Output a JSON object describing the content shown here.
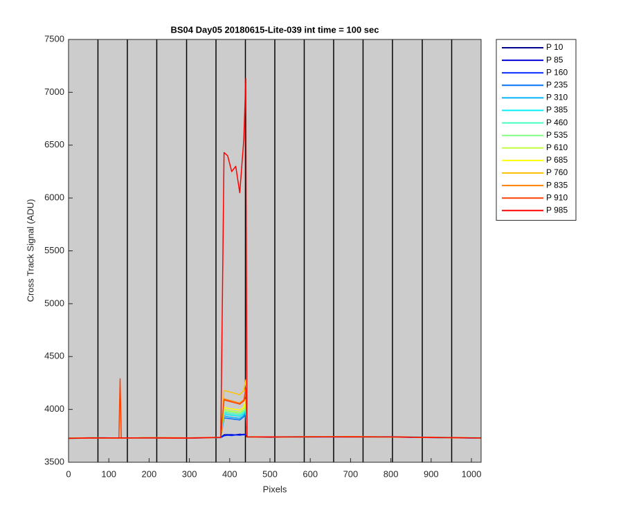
{
  "chart_data": {
    "type": "line",
    "title": "BS04 Day05 20180615-Lite-039 int time = 100 sec",
    "x_label": "Pixels",
    "y_label": "Cross Track Signal (ADU)",
    "xlim": [
      0,
      1024
    ],
    "ylim": [
      3500,
      7500
    ],
    "xticks": [
      0,
      100,
      200,
      300,
      400,
      500,
      600,
      700,
      800,
      900,
      1000
    ],
    "yticks": [
      3500,
      4000,
      4500,
      5000,
      5500,
      6000,
      6500,
      7000,
      7500
    ],
    "vlines": [
      73,
      146,
      219,
      293,
      366,
      439,
      512,
      585,
      658,
      731,
      804,
      878,
      951
    ],
    "background": "#cccccc",
    "legend": "outside-right",
    "x": [
      0,
      60,
      125,
      128,
      131,
      200,
      300,
      378,
      386,
      395,
      405,
      415,
      425,
      435,
      440,
      443,
      500,
      600,
      700,
      800,
      900,
      1024
    ],
    "series": [
      {
        "name": "P 10",
        "color": "#000090",
        "values": [
          3725,
          3730,
          3728,
          3730,
          3728,
          3732,
          3729,
          3735,
          3760,
          3762,
          3758,
          3760,
          3765,
          3762,
          3760,
          3740,
          3738,
          3740,
          3742,
          3740,
          3735,
          3730
        ]
      },
      {
        "name": "P 85",
        "color": "#0000dc",
        "values": [
          3728,
          3732,
          3730,
          3731,
          3729,
          3730,
          3731,
          3734,
          3755,
          3760,
          3762,
          3758,
          3760,
          3765,
          3760,
          3738,
          3736,
          3741,
          3740,
          3738,
          3733,
          3728
        ]
      },
      {
        "name": "P 160",
        "color": "#0028ff",
        "values": [
          3726,
          3731,
          3729,
          3730,
          3730,
          3731,
          3728,
          3733,
          3750,
          3755,
          3752,
          3758,
          3755,
          3760,
          3758,
          3739,
          3737,
          3739,
          3741,
          3739,
          3734,
          3729
        ]
      },
      {
        "name": "P 235",
        "color": "#0070ff",
        "values": [
          3727,
          3729,
          3731,
          3729,
          3731,
          3730,
          3730,
          3736,
          3920,
          3915,
          3910,
          3905,
          3900,
          3930,
          3960,
          3741,
          3739,
          3742,
          3739,
          3741,
          3736,
          3731
        ]
      },
      {
        "name": "P 310",
        "color": "#00b4ff",
        "values": [
          3729,
          3730,
          3728,
          3732,
          3727,
          3733,
          3729,
          3734,
          3940,
          3930,
          3925,
          3920,
          3915,
          3945,
          3980,
          3740,
          3740,
          3741,
          3743,
          3740,
          3735,
          3729
        ]
      },
      {
        "name": "P 385",
        "color": "#00f0ff",
        "values": [
          3726,
          3732,
          3730,
          3730,
          3729,
          3731,
          3731,
          3735,
          3960,
          3950,
          3945,
          3940,
          3935,
          3960,
          4000,
          3742,
          3738,
          3740,
          3741,
          3742,
          3737,
          3730
        ]
      },
      {
        "name": "P 460",
        "color": "#40ffbf",
        "values": [
          3728,
          3731,
          3727,
          3731,
          3730,
          3732,
          3730,
          3736,
          3975,
          3965,
          3960,
          3955,
          3950,
          3975,
          4020,
          3740,
          3741,
          3743,
          3740,
          3739,
          3736,
          3732
        ]
      },
      {
        "name": "P 535",
        "color": "#80ff80",
        "values": [
          3727,
          3729,
          3729,
          3730,
          3731,
          3730,
          3729,
          3734,
          3990,
          3980,
          3975,
          3970,
          3965,
          3990,
          4040,
          3741,
          3739,
          3741,
          3742,
          3741,
          3734,
          3731
        ]
      },
      {
        "name": "P 610",
        "color": "#c0ff40",
        "values": [
          3725,
          3730,
          3730,
          3729,
          3728,
          3731,
          3730,
          3735,
          4000,
          3990,
          3985,
          3980,
          3975,
          4000,
          4060,
          3739,
          3738,
          3742,
          3741,
          3740,
          3735,
          3730
        ]
      },
      {
        "name": "P 685",
        "color": "#ffff00",
        "values": [
          3728,
          3732,
          3729,
          3731,
          3730,
          3732,
          3731,
          3736,
          4020,
          4010,
          4005,
          4000,
          3995,
          4020,
          4100,
          3742,
          3740,
          3740,
          3743,
          3741,
          3736,
          3729
        ]
      },
      {
        "name": "P 760",
        "color": "#ffc000",
        "values": [
          3726,
          3731,
          3728,
          3730,
          3729,
          3730,
          3729,
          3734,
          4180,
          4170,
          4160,
          4150,
          4140,
          4180,
          4280,
          3740,
          3739,
          3741,
          3740,
          3740,
          3735,
          3731
        ]
      },
      {
        "name": "P 835",
        "color": "#ff8000",
        "values": [
          3727,
          3730,
          3730,
          3731,
          3730,
          3731,
          3730,
          3735,
          4100,
          4090,
          4080,
          4070,
          4060,
          4090,
          4150,
          3741,
          3740,
          3742,
          3741,
          3739,
          3734,
          3730
        ]
      },
      {
        "name": "P 910",
        "color": "#ff4000",
        "values": [
          3728,
          3729,
          3731,
          4290,
          3729,
          3732,
          3731,
          3736,
          4090,
          4080,
          4070,
          4060,
          4050,
          4080,
          4200,
          3740,
          3741,
          3740,
          3742,
          3740,
          3736,
          3729
        ]
      },
      {
        "name": "P 985",
        "color": "#ff0000",
        "values": [
          3726,
          3731,
          3729,
          3730,
          3730,
          3730,
          3728,
          3735,
          6430,
          6400,
          6250,
          6300,
          6050,
          6550,
          7130,
          3740,
          3739,
          3741,
          3740,
          3741,
          3735,
          3730
        ]
      }
    ]
  }
}
